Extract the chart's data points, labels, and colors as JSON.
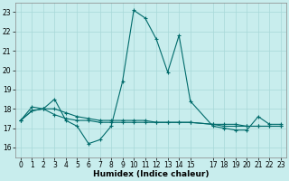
{
  "title": "",
  "xlabel": "Humidex (Indice chaleur)",
  "xlim": [
    -0.5,
    23.5
  ],
  "ylim": [
    15.5,
    23.5
  ],
  "yticks": [
    16,
    17,
    18,
    19,
    20,
    21,
    22,
    23
  ],
  "xticks": [
    0,
    1,
    2,
    3,
    4,
    5,
    6,
    7,
    8,
    9,
    10,
    11,
    12,
    13,
    14,
    15,
    17,
    18,
    19,
    20,
    21,
    22,
    23
  ],
  "bg_color": "#c8eded",
  "grid_color": "#a8d8d8",
  "line_color": "#006b6b",
  "line1_x": [
    0,
    1,
    2,
    3,
    4,
    5,
    6,
    7,
    8,
    9,
    10,
    11,
    12,
    13,
    14,
    15,
    17,
    18,
    19,
    20,
    21,
    22,
    23
  ],
  "line1_y": [
    17.4,
    18.1,
    18.0,
    18.5,
    17.4,
    17.1,
    16.2,
    16.4,
    17.1,
    19.4,
    23.1,
    22.7,
    21.6,
    19.9,
    21.8,
    18.4,
    17.1,
    17.0,
    16.9,
    16.9,
    17.6,
    17.2,
    17.2
  ],
  "line2_x": [
    0,
    1,
    2,
    3,
    4,
    5,
    6,
    7,
    8,
    9,
    10,
    11,
    12,
    13,
    14,
    15,
    17,
    18,
    19,
    20,
    21,
    22,
    23
  ],
  "line2_y": [
    17.4,
    17.9,
    18.0,
    17.7,
    17.5,
    17.4,
    17.4,
    17.3,
    17.3,
    17.3,
    17.3,
    17.3,
    17.3,
    17.3,
    17.3,
    17.3,
    17.2,
    17.2,
    17.2,
    17.1,
    17.1,
    17.1,
    17.1
  ],
  "line3_x": [
    0,
    1,
    2,
    3,
    4,
    5,
    6,
    7,
    8,
    9,
    10,
    11,
    12,
    13,
    14,
    15,
    17,
    18,
    19,
    20,
    21,
    22,
    23
  ],
  "line3_y": [
    17.4,
    17.9,
    18.0,
    18.0,
    17.8,
    17.6,
    17.5,
    17.4,
    17.4,
    17.4,
    17.4,
    17.4,
    17.3,
    17.3,
    17.3,
    17.3,
    17.2,
    17.1,
    17.1,
    17.1,
    17.1,
    17.1,
    17.1
  ]
}
